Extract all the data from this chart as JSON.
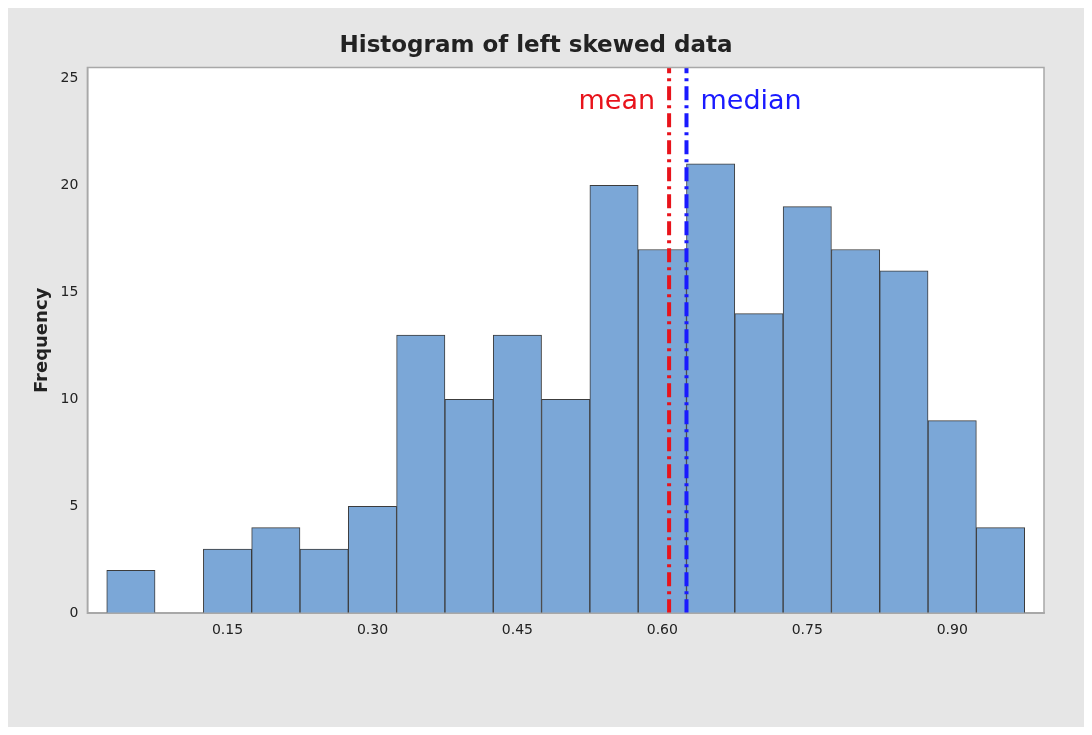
{
  "chart_data": {
    "type": "histogram",
    "title": "Histogram of left skewed data",
    "ylabel": "Frequency",
    "bins": [
      0.025,
      0.075,
      0.125,
      0.175,
      0.225,
      0.275,
      0.325,
      0.375,
      0.425,
      0.475,
      0.525,
      0.575,
      0.625,
      0.675,
      0.725,
      0.775,
      0.825,
      0.875,
      0.925,
      0.975
    ],
    "values": [
      2,
      0,
      3,
      4,
      3,
      5,
      13,
      10,
      13,
      10,
      20,
      17,
      21,
      14,
      19,
      17,
      16,
      9,
      4
    ],
    "color": "#7ba7d7",
    "xlim": [
      0.005,
      0.995
    ],
    "xticks": [
      {
        "value": 0.15,
        "label": "0.15"
      },
      {
        "value": 0.3,
        "label": "0.30"
      },
      {
        "value": 0.45,
        "label": "0.45"
      },
      {
        "value": 0.6,
        "label": "0.60"
      },
      {
        "value": 0.75,
        "label": "0.75"
      },
      {
        "value": 0.9,
        "label": "0.90"
      }
    ],
    "ylim": [
      0,
      25.5
    ],
    "yticks": [
      0,
      5,
      10,
      15,
      20,
      25
    ],
    "ref_lines": [
      {
        "axis": "x",
        "value": 0.607,
        "label": "mean",
        "color": "#e8131b",
        "line_style": "dashed"
      },
      {
        "axis": "x",
        "value": 0.625,
        "label": "median",
        "color": "#1a1aff",
        "line_style": "dashed"
      }
    ]
  }
}
